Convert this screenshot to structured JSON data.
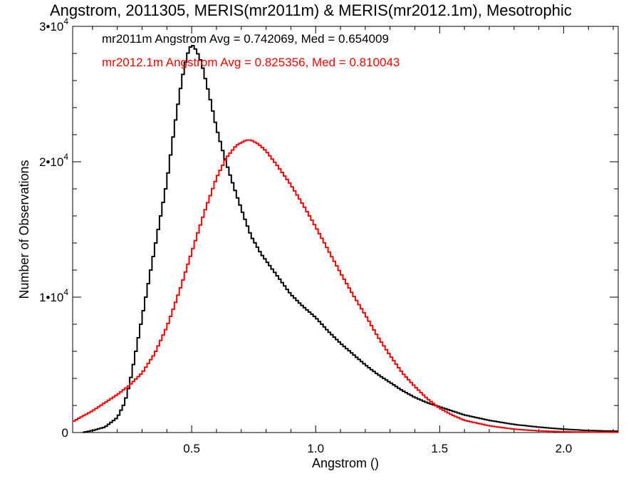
{
  "chart_data": {
    "type": "line",
    "step": true,
    "title": "Angstrom, 2011305, MERIS(mr2011m) & MERIS(mr2012.1m), Mesotrophic",
    "xlabel": "Angstrom ()",
    "ylabel": "Number of Observations",
    "xlim": [
      0.02,
      2.22
    ],
    "ylim": [
      0,
      30000
    ],
    "xticks": [
      {
        "value": 0.5,
        "label": "0.5"
      },
      {
        "value": 1.0,
        "label": "1.0"
      },
      {
        "value": 1.5,
        "label": "1.5"
      },
      {
        "value": 2.0,
        "label": "2.0"
      }
    ],
    "yticks": [
      {
        "value": 0,
        "mant": "0",
        "exp": ""
      },
      {
        "value": 10000,
        "mant": "1•10",
        "exp": "4"
      },
      {
        "value": 20000,
        "mant": "2•10",
        "exp": "4"
      },
      {
        "value": 30000,
        "mant": "3•10",
        "exp": "4"
      }
    ],
    "grid": false,
    "series": [
      {
        "name": "mr2011m",
        "color": "#000000",
        "x": [
          0.06,
          0.1,
          0.15,
          0.2,
          0.23,
          0.25,
          0.27,
          0.3,
          0.33,
          0.36,
          0.4,
          0.43,
          0.46,
          0.48,
          0.5,
          0.52,
          0.54,
          0.57,
          0.6,
          0.63,
          0.65,
          0.68,
          0.71,
          0.74,
          0.78,
          0.82,
          0.86,
          0.9,
          0.95,
          1.0,
          1.05,
          1.1,
          1.15,
          1.2,
          1.25,
          1.3,
          1.35,
          1.4,
          1.45,
          1.5,
          1.55,
          1.6,
          1.7,
          1.8,
          1.9,
          2.0,
          2.1,
          2.22
        ],
        "y": [
          0,
          150,
          400,
          1100,
          2200,
          3600,
          5500,
          8500,
          11500,
          14500,
          18500,
          22500,
          26000,
          27800,
          28700,
          28200,
          27300,
          25000,
          22500,
          20500,
          19300,
          17600,
          16000,
          14500,
          13200,
          12200,
          11200,
          10200,
          9300,
          8500,
          7500,
          6600,
          5800,
          5000,
          4300,
          3700,
          3100,
          2600,
          2200,
          1900,
          1600,
          1300,
          900,
          600,
          400,
          250,
          150,
          100
        ]
      },
      {
        "name": "mr2012.1m",
        "color": "#ff0000",
        "x": [
          0.02,
          0.05,
          0.1,
          0.15,
          0.2,
          0.25,
          0.3,
          0.35,
          0.4,
          0.45,
          0.5,
          0.55,
          0.6,
          0.64,
          0.68,
          0.72,
          0.74,
          0.77,
          0.8,
          0.85,
          0.9,
          0.95,
          1.0,
          1.05,
          1.1,
          1.15,
          1.2,
          1.25,
          1.3,
          1.35,
          1.4,
          1.45,
          1.5,
          1.55,
          1.6,
          1.7,
          1.8,
          1.9,
          2.0,
          2.1,
          2.22
        ],
        "y": [
          800,
          1100,
          1600,
          2200,
          2800,
          3500,
          4400,
          5800,
          7800,
          10400,
          13300,
          16200,
          18800,
          20300,
          21200,
          21600,
          21600,
          21300,
          20800,
          19600,
          18300,
          16800,
          15200,
          13500,
          11800,
          10200,
          8700,
          7100,
          5700,
          4400,
          3400,
          2500,
          1800,
          1300,
          900,
          500,
          250,
          120,
          60,
          30,
          20
        ]
      }
    ],
    "annotations": [
      {
        "text": "mr2011m Angstrom Avg = 0.742069, Med = 0.654009",
        "color": "#000000"
      },
      {
        "text": "mr2012.1m Angstrom Avg = 0.825356, Med = 0.810043",
        "color": "#ff0000"
      }
    ]
  }
}
